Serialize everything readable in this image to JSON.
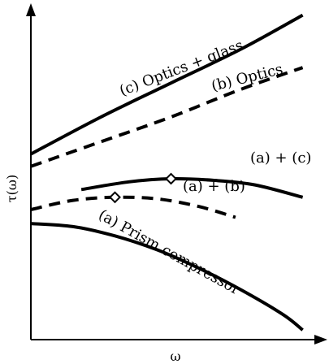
{
  "chart_data": {
    "type": "line",
    "xlabel": "ω",
    "ylabel": "τ(ω)",
    "xlim": [
      0,
      1
    ],
    "ylim": [
      0,
      1
    ],
    "grid": false,
    "series": [
      {
        "name": "(c) Optics + glass",
        "label": "(c) Optics + glass",
        "style": "solid",
        "x": [
          0.0,
          0.25,
          0.5,
          0.75,
          0.97
        ],
        "y": [
          0.58,
          0.7,
          0.81,
          0.92,
          1.03
        ]
      },
      {
        "name": "(b) Optics",
        "label": "(b) Optics",
        "style": "dashed",
        "x": [
          0.0,
          0.25,
          0.5,
          0.75,
          0.97
        ],
        "y": [
          0.54,
          0.62,
          0.7,
          0.79,
          0.86
        ]
      },
      {
        "name": "(a) + (c)",
        "label": "(a) + (c)",
        "style": "solid",
        "x": [
          0.18,
          0.35,
          0.5,
          0.65,
          0.8,
          0.97
        ],
        "y": [
          0.465,
          0.49,
          0.5,
          0.495,
          0.48,
          0.44
        ]
      },
      {
        "name": "(a) + (b)",
        "label": "(a) + (b)",
        "style": "dashed",
        "x": [
          0.0,
          0.15,
          0.3,
          0.45,
          0.6,
          0.73
        ],
        "y": [
          0.4,
          0.43,
          0.44,
          0.435,
          0.41,
          0.375
        ]
      },
      {
        "name": "(a) Prism compressor",
        "label": "(a) Prism compressor",
        "style": "solid",
        "x": [
          0.0,
          0.15,
          0.3,
          0.45,
          0.6,
          0.75,
          0.9,
          0.97
        ],
        "y": [
          0.355,
          0.345,
          0.315,
          0.27,
          0.21,
          0.14,
          0.06,
          0.01
        ]
      }
    ],
    "markers": [
      {
        "series": "(a) + (c)",
        "x": 0.5,
        "y": 0.5,
        "shape": "diamond"
      },
      {
        "series": "(a) + (b)",
        "x": 0.3,
        "y": 0.44,
        "shape": "diamond"
      }
    ]
  }
}
